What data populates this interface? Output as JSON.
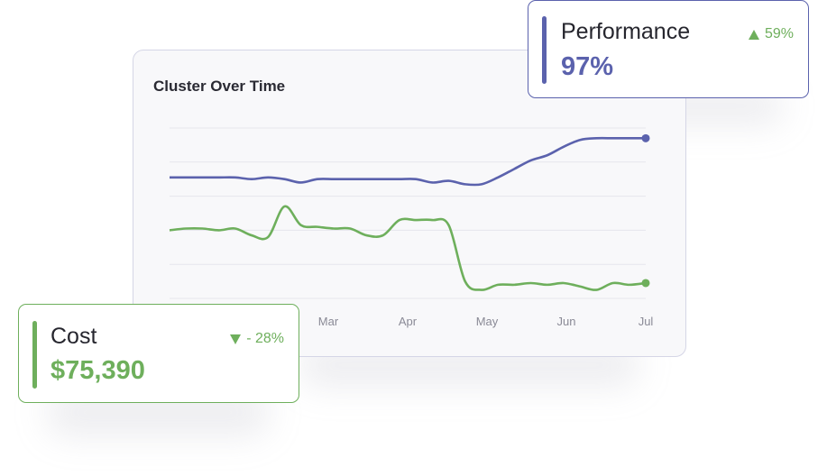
{
  "chart": {
    "title": "Cluster Over Time"
  },
  "performance_card": {
    "label": "Performance",
    "value": "97%",
    "change": "59%",
    "change_direction": "up",
    "color": "#5b62ad"
  },
  "cost_card": {
    "label": "Cost",
    "value": "$75,390",
    "change": "- 28%",
    "change_direction": "down",
    "color": "#6eaf5c"
  },
  "chart_data": {
    "type": "line",
    "title": "Cluster Over Time",
    "xlabel": "",
    "ylabel": "",
    "x_tick_labels": [
      "Mar",
      "Apr",
      "May",
      "Jun",
      "Jul"
    ],
    "grid": true,
    "y_axis_visible": false,
    "series": [
      {
        "color": "#5b62ad",
        "end_marker": true,
        "values": [
          0.71,
          0.71,
          0.71,
          0.71,
          0.71,
          0.7,
          0.71,
          0.7,
          0.68,
          0.7,
          0.7,
          0.7,
          0.7,
          0.7,
          0.7,
          0.7,
          0.68,
          0.69,
          0.67,
          0.67,
          0.71,
          0.76,
          0.81,
          0.84,
          0.89,
          0.93,
          0.94,
          0.94,
          0.94,
          0.94
        ]
      },
      {
        "color": "#6eaf5c",
        "end_marker": true,
        "values": [
          0.4,
          0.41,
          0.41,
          0.4,
          0.41,
          0.37,
          0.36,
          0.54,
          0.43,
          0.42,
          0.41,
          0.41,
          0.37,
          0.37,
          0.46,
          0.46,
          0.46,
          0.43,
          0.1,
          0.05,
          0.08,
          0.08,
          0.09,
          0.08,
          0.09,
          0.07,
          0.05,
          0.09,
          0.08,
          0.09
        ]
      }
    ]
  }
}
